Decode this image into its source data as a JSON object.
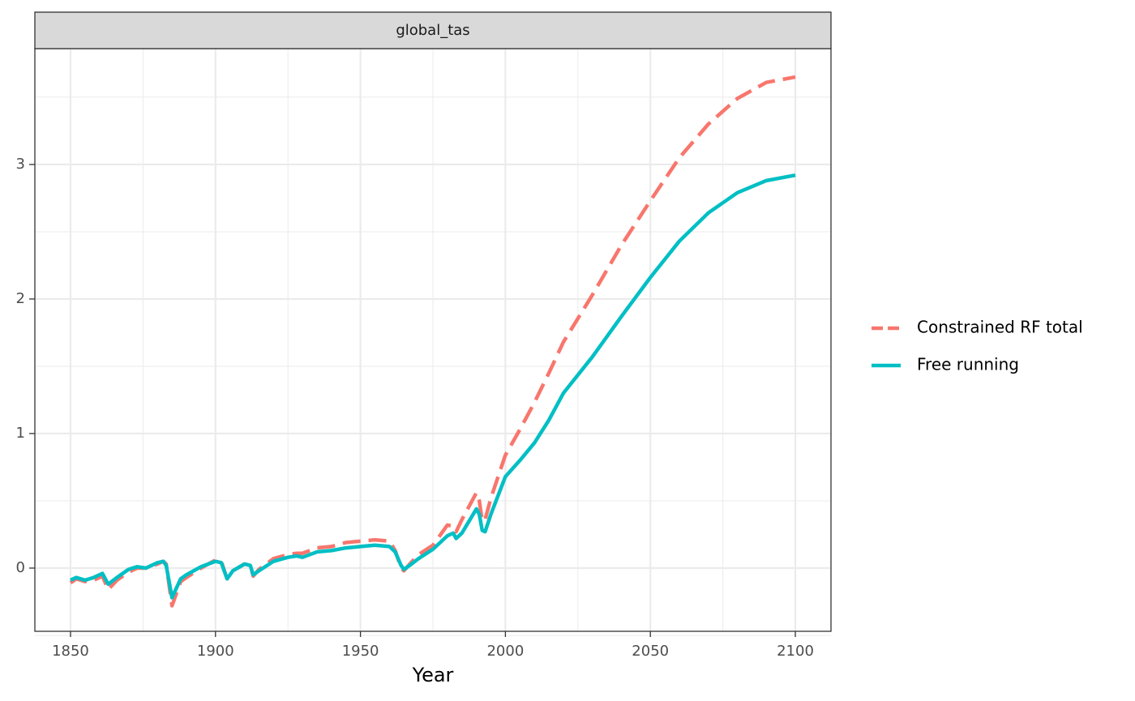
{
  "chart_data": {
    "type": "line",
    "panel_label": "global_tas",
    "x_label": "Year",
    "x": [
      1850,
      1852,
      1855,
      1858,
      1861,
      1863,
      1866,
      1870,
      1873,
      1876,
      1880,
      1882,
      1883,
      1885,
      1888,
      1890,
      1895,
      1900,
      1902,
      1904,
      1906,
      1910,
      1912,
      1913,
      1915,
      1920,
      1925,
      1928,
      1930,
      1935,
      1940,
      1945,
      1950,
      1955,
      1960,
      1962,
      1964,
      1965,
      1967,
      1970,
      1975,
      1980,
      1982,
      1983,
      1985,
      1990,
      1991,
      1992,
      1993,
      1995,
      2000,
      2005,
      2010,
      2015,
      2020,
      2030,
      2040,
      2050,
      2060,
      2070,
      2080,
      2090,
      2100
    ],
    "series": [
      {
        "name": "Constrained RF total",
        "color": "#F8766D",
        "linetype": "dashed",
        "values": [
          -0.11,
          -0.08,
          -0.1,
          -0.09,
          -0.06,
          -0.16,
          -0.09,
          -0.03,
          0.0,
          0.0,
          0.03,
          0.05,
          0.03,
          -0.28,
          -0.1,
          -0.07,
          0.0,
          0.06,
          0.05,
          -0.08,
          -0.02,
          0.03,
          0.02,
          -0.06,
          -0.01,
          0.07,
          0.1,
          0.11,
          0.11,
          0.15,
          0.16,
          0.19,
          0.2,
          0.21,
          0.2,
          0.13,
          0.0,
          -0.02,
          0.03,
          0.1,
          0.17,
          0.32,
          0.31,
          0.27,
          0.36,
          0.56,
          0.5,
          0.35,
          0.36,
          0.52,
          0.84,
          1.03,
          1.23,
          1.45,
          1.68,
          2.03,
          2.4,
          2.73,
          3.05,
          3.3,
          3.49,
          3.61,
          3.65
        ]
      },
      {
        "name": "Free running",
        "color": "#00BFC4",
        "linetype": "solid",
        "values": [
          -0.09,
          -0.07,
          -0.09,
          -0.07,
          -0.04,
          -0.12,
          -0.07,
          -0.01,
          0.01,
          0.0,
          0.04,
          0.05,
          0.02,
          -0.22,
          -0.08,
          -0.05,
          0.01,
          0.05,
          0.04,
          -0.08,
          -0.02,
          0.03,
          0.02,
          -0.05,
          -0.02,
          0.05,
          0.08,
          0.09,
          0.08,
          0.12,
          0.13,
          0.15,
          0.16,
          0.17,
          0.16,
          0.12,
          0.02,
          -0.01,
          0.02,
          0.07,
          0.14,
          0.24,
          0.26,
          0.22,
          0.26,
          0.44,
          0.4,
          0.28,
          0.27,
          0.4,
          0.68,
          0.8,
          0.93,
          1.1,
          1.3,
          1.57,
          1.87,
          2.16,
          2.43,
          2.64,
          2.79,
          2.88,
          2.92
        ]
      }
    ],
    "xlim": [
      1837.7,
      2112.3
    ],
    "xticks": [
      1850,
      1900,
      1950,
      2000,
      2050,
      2100
    ],
    "x_minor": [
      1875,
      1925,
      1975,
      2025,
      2075
    ],
    "ylim": [
      -0.47,
      3.861
    ],
    "yticks": [
      0,
      1,
      2,
      3
    ],
    "y_minor": [
      -0.5,
      0.5,
      1.5,
      2.5,
      3.5
    ],
    "grid": true,
    "legend": "right"
  }
}
